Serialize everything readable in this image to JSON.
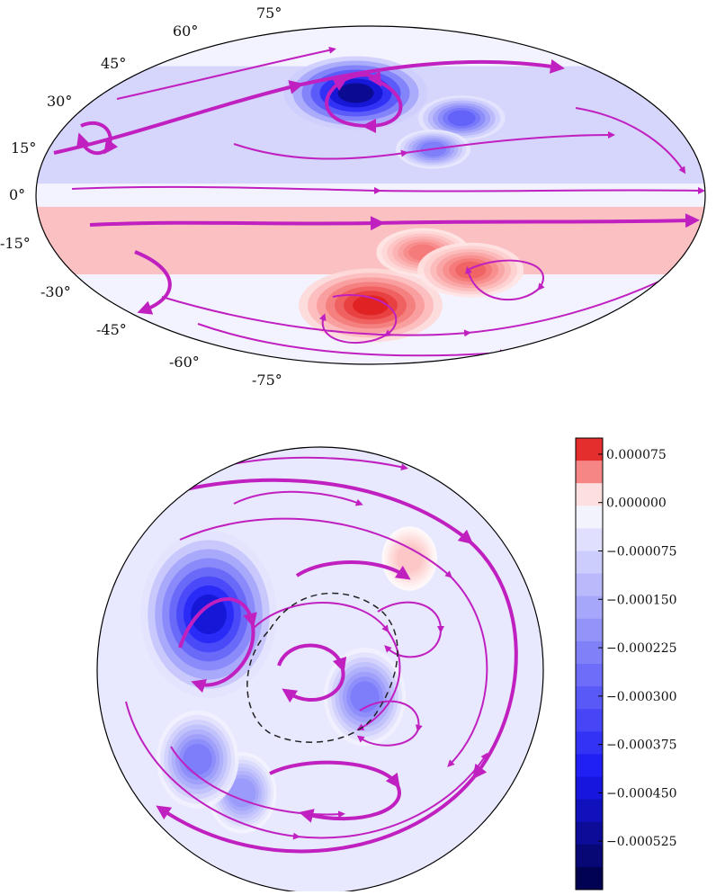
{
  "colors": {
    "stream": "#c020c0",
    "max_positive": "#d40000",
    "max_negative": "#000040",
    "neutral": "#ffffff",
    "contour_dashed": "#222222"
  },
  "chart_data": [
    {
      "type": "heatmap",
      "projection": "mollweide",
      "overlay": "streamlines",
      "latitude_ticks": [
        {
          "value": 75,
          "label": "75°"
        },
        {
          "value": 60,
          "label": "60°"
        },
        {
          "value": 45,
          "label": "45°"
        },
        {
          "value": 30,
          "label": "30°"
        },
        {
          "value": 15,
          "label": "15°"
        },
        {
          "value": 0,
          "label": "0°"
        },
        {
          "value": -15,
          "label": "-15°"
        },
        {
          "value": -30,
          "label": "-30°"
        },
        {
          "value": -45,
          "label": "-45°"
        },
        {
          "value": -60,
          "label": "-60°"
        },
        {
          "value": -75,
          "label": "-75°"
        }
      ],
      "features": [
        {
          "kind": "vortex",
          "sign": "negative",
          "lon": -10,
          "lat": 46,
          "strength": 1.0
        },
        {
          "kind": "vortex",
          "sign": "negative",
          "lon": 55,
          "lat": 34,
          "strength": 0.55
        },
        {
          "kind": "vortex",
          "sign": "negative",
          "lon": 35,
          "lat": 20,
          "strength": 0.45
        },
        {
          "kind": "vortex",
          "sign": "positive",
          "lon": 0,
          "lat": -50,
          "strength": 1.0
        },
        {
          "kind": "vortex",
          "sign": "positive",
          "lon": 30,
          "lat": -25,
          "strength": 0.6
        },
        {
          "kind": "vortex",
          "sign": "positive",
          "lon": 60,
          "lat": -33,
          "strength": 0.7
        },
        {
          "kind": "band",
          "sign": "positive",
          "lat_range": [
            -35,
            -5
          ],
          "strength": 0.3
        },
        {
          "kind": "band",
          "sign": "negative",
          "lat_range": [
            5,
            60
          ],
          "strength": 0.15
        }
      ]
    },
    {
      "type": "heatmap",
      "projection": "polar-orthographic",
      "overlay": "streamlines",
      "colorbar": {
        "min": -0.0006,
        "max": 0.0001,
        "tick_values": [
          7.5e-05,
          0.0,
          -7.5e-05,
          -0.00015,
          -0.000225,
          -0.0003,
          -0.000375,
          -0.00045,
          -0.000525
        ],
        "tick_labels": [
          "0.000075",
          "0.000000",
          "−0.000075",
          "−0.000150",
          "−0.000225",
          "−0.000300",
          "−0.000375",
          "−0.000450",
          "−0.000525"
        ]
      },
      "features": [
        {
          "kind": "vortex",
          "sign": "negative",
          "x": -0.5,
          "y": -0.25,
          "strength": 0.85
        },
        {
          "kind": "vortex",
          "sign": "negative",
          "x": 0.2,
          "y": 0.12,
          "strength": 0.45
        },
        {
          "kind": "vortex",
          "sign": "negative",
          "x": -0.35,
          "y": 0.55,
          "strength": 0.35
        },
        {
          "kind": "vortex",
          "sign": "negative",
          "x": -0.55,
          "y": 0.4,
          "strength": 0.45
        },
        {
          "kind": "vortex",
          "sign": "positive",
          "x": 0.4,
          "y": -0.5,
          "strength": 0.25
        }
      ]
    }
  ]
}
